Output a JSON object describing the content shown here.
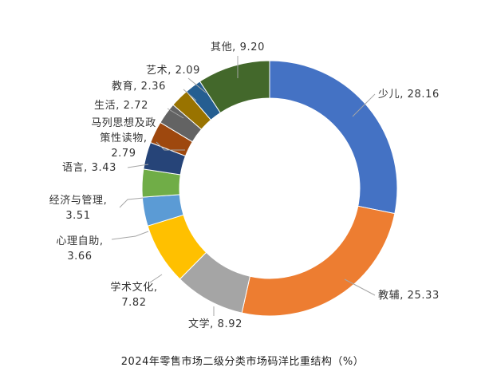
{
  "chart_data": {
    "type": "pie",
    "subtype": "donut",
    "title": "2024年零售市场二级分类市场码洋比重结构（%）",
    "legend": "none",
    "slices": [
      {
        "name": "少儿",
        "value": 28.16,
        "value_label": "28.16",
        "color": "#4472C4",
        "label_lines": [
          "少儿, 28.16"
        ]
      },
      {
        "name": "教辅",
        "value": 25.33,
        "value_label": "25.33",
        "color": "#ED7D31",
        "label_lines": [
          "教辅, 25.33"
        ]
      },
      {
        "name": "文学",
        "value": 8.92,
        "value_label": "8.92",
        "color": "#A5A5A5",
        "label_lines": [
          "文学, 8.92"
        ]
      },
      {
        "name": "学术文化",
        "value": 7.82,
        "value_label": "7.82",
        "color": "#FFC000",
        "label_lines": [
          "学术文化,",
          "7.82"
        ]
      },
      {
        "name": "心理自助",
        "value": 3.66,
        "value_label": "3.66",
        "color": "#5B9BD5",
        "label_lines": [
          "心理自助,",
          "3.66"
        ]
      },
      {
        "name": "经济与管理",
        "value": 3.51,
        "value_label": "3.51",
        "color": "#70AD47",
        "label_lines": [
          "经济与管理,",
          "3.51"
        ]
      },
      {
        "name": "语言",
        "value": 3.43,
        "value_label": "3.43",
        "color": "#264478",
        "label_lines": [
          "语言, 3.43"
        ]
      },
      {
        "name": "马列思想及政策性读物",
        "value": 2.79,
        "value_label": "2.79",
        "color": "#9E480E",
        "label_lines": [
          "马列思想及政",
          "策性读物,",
          "2.79"
        ]
      },
      {
        "name": "生活",
        "value": 2.72,
        "value_label": "2.72",
        "color": "#636363",
        "label_lines": [
          "生活, 2.72"
        ]
      },
      {
        "name": "教育",
        "value": 2.36,
        "value_label": "2.36",
        "color": "#997300",
        "label_lines": [
          "教育, 2.36"
        ]
      },
      {
        "name": "艺术",
        "value": 2.09,
        "value_label": "2.09",
        "color": "#255E91",
        "label_lines": [
          "艺术, 2.09"
        ]
      },
      {
        "name": "其他",
        "value": 9.2,
        "value_label": "9.20",
        "color": "#43682B",
        "label_lines": [
          "其他, 9.20"
        ]
      }
    ]
  }
}
